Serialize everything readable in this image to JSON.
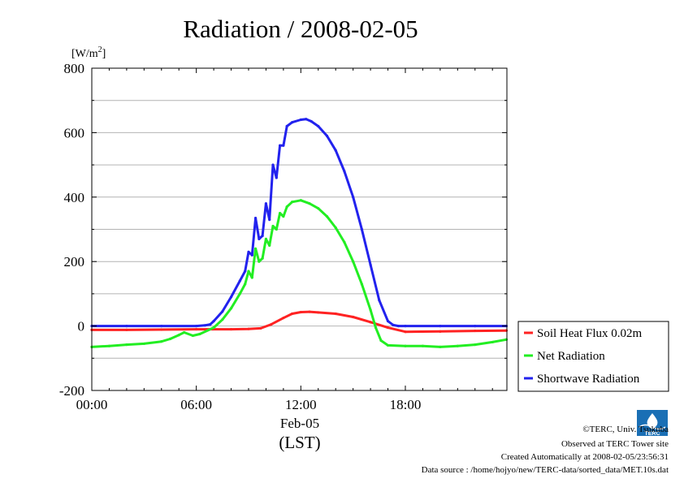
{
  "chart_data": {
    "type": "line",
    "title": "Radiation / 2008-02-05",
    "ylabel_unit": "[W/m",
    "ylabel_unit_sup": "2",
    "ylabel_unit_end": "]",
    "ylim": [
      -200,
      800
    ],
    "xlim": [
      0,
      23.83
    ],
    "y_ticks": [
      -200,
      0,
      200,
      400,
      600,
      800
    ],
    "y_tick_labels": [
      "-200",
      "0",
      "200",
      "400",
      "600",
      "800"
    ],
    "x_ticks": [
      0,
      6,
      12,
      18
    ],
    "x_tick_labels": [
      "00:00",
      "06:00",
      "12:00",
      "18:00"
    ],
    "x_date_label": "Feb-05",
    "x_axis_label": "(LST)",
    "grid": true,
    "legend_position": "right",
    "series": [
      {
        "name": "Soil Heat Flux 0.02m",
        "color": "#ff2222",
        "x": [
          0,
          2,
          4,
          6,
          8,
          9,
          9.7,
          10.3,
          11,
          11.5,
          12,
          12.5,
          13,
          14,
          15,
          16,
          17,
          18,
          20,
          22,
          23.8
        ],
        "y": [
          -12,
          -12,
          -11,
          -10,
          -10,
          -9,
          -7,
          5,
          25,
          38,
          43,
          44,
          42,
          38,
          28,
          12,
          -5,
          -18,
          -17,
          -15,
          -14
        ]
      },
      {
        "name": "Net Radiation",
        "color": "#22ee22",
        "x": [
          0,
          1,
          2,
          3,
          4,
          4.5,
          5,
          5.3,
          5.8,
          6.2,
          7,
          7.5,
          8,
          8.5,
          8.8,
          9,
          9.2,
          9.4,
          9.6,
          9.8,
          10,
          10.2,
          10.4,
          10.6,
          10.8,
          11,
          11.2,
          11.5,
          12,
          12.5,
          13,
          13.5,
          14,
          14.5,
          15,
          15.5,
          16,
          16.3,
          16.6,
          17,
          18,
          19,
          20,
          21,
          22,
          23,
          23.8
        ],
        "y": [
          -65,
          -62,
          -58,
          -55,
          -48,
          -40,
          -28,
          -20,
          -30,
          -25,
          -5,
          20,
          55,
          100,
          130,
          170,
          150,
          240,
          200,
          210,
          270,
          250,
          310,
          300,
          350,
          340,
          370,
          385,
          390,
          380,
          365,
          340,
          305,
          260,
          200,
          130,
          50,
          -5,
          -45,
          -60,
          -62,
          -62,
          -65,
          -62,
          -58,
          -50,
          -42
        ]
      },
      {
        "name": "Shortwave Radiation",
        "color": "#2222ee",
        "x": [
          0,
          2,
          4,
          6,
          6.5,
          6.8,
          7,
          7.5,
          8,
          8.5,
          8.8,
          9,
          9.2,
          9.4,
          9.6,
          9.8,
          10,
          10.2,
          10.4,
          10.6,
          10.8,
          11,
          11.2,
          11.5,
          12,
          12.3,
          12.6,
          13,
          13.5,
          14,
          14.5,
          15,
          15.5,
          16,
          16.5,
          17,
          17.3,
          17.6,
          18,
          20,
          22,
          23.8
        ],
        "y": [
          0,
          0,
          0,
          0,
          2,
          5,
          15,
          45,
          90,
          140,
          170,
          230,
          220,
          335,
          270,
          280,
          380,
          330,
          500,
          460,
          560,
          560,
          620,
          632,
          640,
          642,
          635,
          620,
          590,
          545,
          480,
          400,
          300,
          190,
          80,
          15,
          3,
          0,
          0,
          0,
          0,
          0
        ]
      }
    ]
  },
  "footer": {
    "copyright": "©TERC, Univ. Tsukuba",
    "observed": "Observed at TERC Tower site",
    "created": "Created Automatically at 2008-02-05/23:56:31",
    "source": "Data source : /home/hojyo/new/TERC-data/sorted_data/MET.10s.dat",
    "logo_text": "TERC"
  }
}
